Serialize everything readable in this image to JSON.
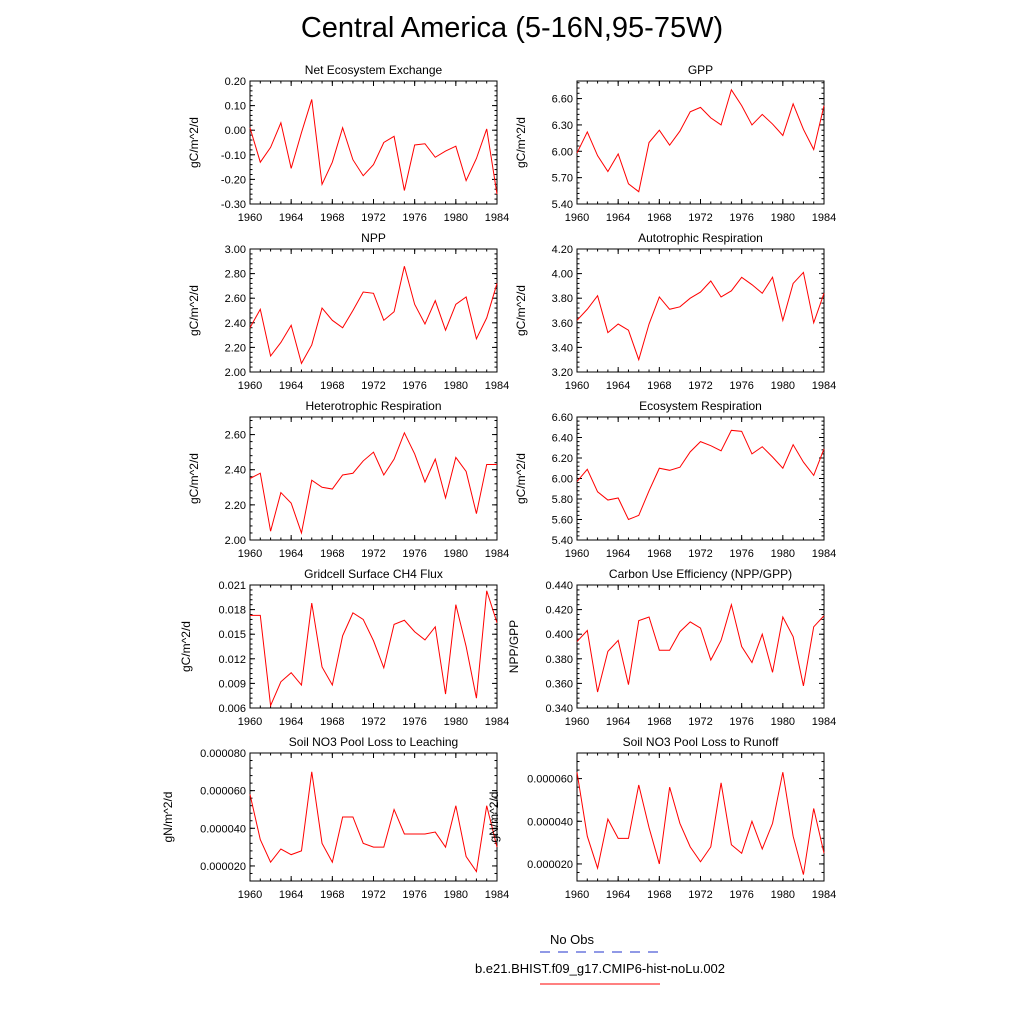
{
  "title": "Central America (5-16N,95-75W)",
  "colors": {
    "series": "#ff0000",
    "obs": "#2233cc",
    "axis": "#000000"
  },
  "legend": {
    "obs_label": "No Obs",
    "model_label": "b.e21.BHIST.f09_g17.CMIP6-hist-noLu.002"
  },
  "chart_data": [
    {
      "type": "line",
      "title": "Net Ecosystem Exchange",
      "ylabel": "gC/m^2/d",
      "ylim": [
        -0.3,
        0.2
      ],
      "yticks": [
        "-0.30",
        "-0.20",
        "-0.10",
        "0.00",
        "0.10",
        "0.20"
      ],
      "xlim": [
        1960,
        1984
      ],
      "xticks": [
        "1960",
        "1964",
        "1968",
        "1972",
        "1976",
        "1980",
        "1984"
      ],
      "x": [
        1960,
        1961,
        1962,
        1963,
        1964,
        1965,
        1966,
        1967,
        1968,
        1969,
        1970,
        1971,
        1972,
        1973,
        1974,
        1975,
        1976,
        1977,
        1978,
        1979,
        1980,
        1981,
        1982,
        1983,
        1984
      ],
      "series": [
        {
          "values": [
            0.01,
            -0.13,
            -0.07,
            0.03,
            -0.155,
            -0.01,
            0.125,
            -0.22,
            -0.13,
            0.01,
            -0.12,
            -0.185,
            -0.14,
            -0.05,
            -0.025,
            -0.245,
            -0.06,
            -0.055,
            -0.11,
            -0.085,
            -0.065,
            -0.205,
            -0.115,
            0.005,
            -0.26
          ]
        }
      ]
    },
    {
      "type": "line",
      "title": "GPP",
      "ylabel": "gC/m^2/d",
      "ylim": [
        5.4,
        6.8
      ],
      "yticks": [
        "5.40",
        "5.70",
        "6.00",
        "6.30",
        "6.60"
      ],
      "xlim": [
        1960,
        1984
      ],
      "xticks": [
        "1960",
        "1964",
        "1968",
        "1972",
        "1976",
        "1980",
        "1984"
      ],
      "x": [
        1960,
        1961,
        1962,
        1963,
        1964,
        1965,
        1966,
        1967,
        1968,
        1969,
        1970,
        1971,
        1972,
        1973,
        1974,
        1975,
        1976,
        1977,
        1978,
        1979,
        1980,
        1981,
        1982,
        1983,
        1984
      ],
      "series": [
        {
          "values": [
            5.98,
            6.22,
            5.95,
            5.77,
            5.97,
            5.63,
            5.54,
            6.1,
            6.24,
            6.07,
            6.23,
            6.45,
            6.5,
            6.38,
            6.3,
            6.7,
            6.52,
            6.3,
            6.42,
            6.31,
            6.18,
            6.54,
            6.25,
            6.02,
            6.52
          ]
        }
      ]
    },
    {
      "type": "line",
      "title": "NPP",
      "ylabel": "gC/m^2/d",
      "ylim": [
        2.0,
        3.0
      ],
      "yticks": [
        "2.00",
        "2.20",
        "2.40",
        "2.60",
        "2.80",
        "3.00"
      ],
      "xlim": [
        1960,
        1984
      ],
      "xticks": [
        "1960",
        "1964",
        "1968",
        "1972",
        "1976",
        "1980",
        "1984"
      ],
      "x": [
        1960,
        1961,
        1962,
        1963,
        1964,
        1965,
        1966,
        1967,
        1968,
        1969,
        1970,
        1971,
        1972,
        1973,
        1974,
        1975,
        1976,
        1977,
        1978,
        1979,
        1980,
        1981,
        1982,
        1983,
        1984
      ],
      "series": [
        {
          "values": [
            2.36,
            2.51,
            2.13,
            2.24,
            2.38,
            2.07,
            2.22,
            2.52,
            2.42,
            2.36,
            2.5,
            2.65,
            2.64,
            2.42,
            2.49,
            2.86,
            2.55,
            2.39,
            2.58,
            2.34,
            2.55,
            2.61,
            2.27,
            2.44,
            2.72
          ]
        }
      ]
    },
    {
      "type": "line",
      "title": "Autotrophic Respiration",
      "ylabel": "gC/m^2/d",
      "ylim": [
        3.2,
        4.2
      ],
      "yticks": [
        "3.20",
        "3.40",
        "3.60",
        "3.80",
        "4.00",
        "4.20"
      ],
      "xlim": [
        1960,
        1984
      ],
      "xticks": [
        "1960",
        "1964",
        "1968",
        "1972",
        "1976",
        "1980",
        "1984"
      ],
      "x": [
        1960,
        1961,
        1962,
        1963,
        1964,
        1965,
        1966,
        1967,
        1968,
        1969,
        1970,
        1971,
        1972,
        1973,
        1974,
        1975,
        1976,
        1977,
        1978,
        1979,
        1980,
        1981,
        1982,
        1983,
        1984
      ],
      "series": [
        {
          "values": [
            3.62,
            3.71,
            3.82,
            3.52,
            3.59,
            3.54,
            3.3,
            3.59,
            3.81,
            3.71,
            3.73,
            3.8,
            3.85,
            3.94,
            3.81,
            3.86,
            3.97,
            3.91,
            3.84,
            3.97,
            3.62,
            3.92,
            4.01,
            3.6,
            3.84
          ]
        }
      ]
    },
    {
      "type": "line",
      "title": "Heterotrophic Respiration",
      "ylabel": "gC/m^2/d",
      "ylim": [
        2.0,
        2.7
      ],
      "yticks": [
        "2.00",
        "2.20",
        "2.40",
        "2.60"
      ],
      "xlim": [
        1960,
        1984
      ],
      "xticks": [
        "1960",
        "1964",
        "1968",
        "1972",
        "1976",
        "1980",
        "1984"
      ],
      "x": [
        1960,
        1961,
        1962,
        1963,
        1964,
        1965,
        1966,
        1967,
        1968,
        1969,
        1970,
        1971,
        1972,
        1973,
        1974,
        1975,
        1976,
        1977,
        1978,
        1979,
        1980,
        1981,
        1982,
        1983,
        1984
      ],
      "series": [
        {
          "values": [
            2.35,
            2.38,
            2.05,
            2.27,
            2.21,
            2.04,
            2.34,
            2.3,
            2.29,
            2.37,
            2.38,
            2.45,
            2.5,
            2.37,
            2.46,
            2.61,
            2.49,
            2.33,
            2.46,
            2.24,
            2.47,
            2.39,
            2.15,
            2.43,
            2.43
          ]
        }
      ]
    },
    {
      "type": "line",
      "title": "Ecosystem Respiration",
      "ylabel": "gC/m^2/d",
      "ylim": [
        5.4,
        6.6
      ],
      "yticks": [
        "5.40",
        "5.60",
        "5.80",
        "6.00",
        "6.20",
        "6.40",
        "6.60"
      ],
      "xlim": [
        1960,
        1984
      ],
      "xticks": [
        "1960",
        "1964",
        "1968",
        "1972",
        "1976",
        "1980",
        "1984"
      ],
      "x": [
        1960,
        1961,
        1962,
        1963,
        1964,
        1965,
        1966,
        1967,
        1968,
        1969,
        1970,
        1971,
        1972,
        1973,
        1974,
        1975,
        1976,
        1977,
        1978,
        1979,
        1980,
        1981,
        1982,
        1983,
        1984
      ],
      "series": [
        {
          "values": [
            5.97,
            6.09,
            5.87,
            5.79,
            5.81,
            5.6,
            5.64,
            5.88,
            6.1,
            6.08,
            6.11,
            6.26,
            6.36,
            6.32,
            6.27,
            6.47,
            6.46,
            6.24,
            6.31,
            6.21,
            6.1,
            6.33,
            6.16,
            6.03,
            6.29
          ]
        }
      ]
    },
    {
      "type": "line",
      "title": "Gridcell Surface CH4 Flux",
      "ylabel": "gC/m^2/d",
      "ylim": [
        0.006,
        0.021
      ],
      "yticks": [
        "0.006",
        "0.009",
        "0.012",
        "0.015",
        "0.018",
        "0.021"
      ],
      "xlim": [
        1960,
        1984
      ],
      "xticks": [
        "1960",
        "1964",
        "1968",
        "1972",
        "1976",
        "1980",
        "1984"
      ],
      "x": [
        1960,
        1961,
        1962,
        1963,
        1964,
        1965,
        1966,
        1967,
        1968,
        1969,
        1970,
        1971,
        1972,
        1973,
        1974,
        1975,
        1976,
        1977,
        1978,
        1979,
        1980,
        1981,
        1982,
        1983,
        1984
      ],
      "series": [
        {
          "values": [
            0.0173,
            0.0173,
            0.0063,
            0.0092,
            0.0103,
            0.0088,
            0.0188,
            0.011,
            0.0088,
            0.0148,
            0.0176,
            0.0168,
            0.0142,
            0.0109,
            0.0162,
            0.0167,
            0.0153,
            0.0143,
            0.0159,
            0.0077,
            0.0186,
            0.0135,
            0.0072,
            0.0203,
            0.0164
          ]
        }
      ]
    },
    {
      "type": "line",
      "title": "Carbon Use Efficiency (NPP/GPP)",
      "ylabel": "NPP/GPP",
      "ylim": [
        0.34,
        0.44
      ],
      "yticks": [
        "0.340",
        "0.360",
        "0.380",
        "0.400",
        "0.420",
        "0.440"
      ],
      "xlim": [
        1960,
        1984
      ],
      "xticks": [
        "1960",
        "1964",
        "1968",
        "1972",
        "1976",
        "1980",
        "1984"
      ],
      "x": [
        1960,
        1961,
        1962,
        1963,
        1964,
        1965,
        1966,
        1967,
        1968,
        1969,
        1970,
        1971,
        1972,
        1973,
        1974,
        1975,
        1976,
        1977,
        1978,
        1979,
        1980,
        1981,
        1982,
        1983,
        1984
      ],
      "series": [
        {
          "values": [
            0.394,
            0.403,
            0.353,
            0.386,
            0.395,
            0.359,
            0.411,
            0.414,
            0.387,
            0.387,
            0.402,
            0.41,
            0.405,
            0.379,
            0.395,
            0.424,
            0.39,
            0.377,
            0.4,
            0.369,
            0.414,
            0.398,
            0.358,
            0.406,
            0.415
          ]
        }
      ]
    },
    {
      "type": "line",
      "title": "Soil NO3 Pool Loss to Leaching",
      "ylabel": "gN/m^2/d",
      "ylim": [
        1.2e-05,
        8e-05
      ],
      "yticks": [
        "0.000020",
        "0.000040",
        "0.000060",
        "0.000080"
      ],
      "xlim": [
        1960,
        1984
      ],
      "xticks": [
        "1960",
        "1964",
        "1968",
        "1972",
        "1976",
        "1980",
        "1984"
      ],
      "x": [
        1960,
        1961,
        1962,
        1963,
        1964,
        1965,
        1966,
        1967,
        1968,
        1969,
        1970,
        1971,
        1972,
        1973,
        1974,
        1975,
        1976,
        1977,
        1978,
        1979,
        1980,
        1981,
        1982,
        1983,
        1984
      ],
      "series": [
        {
          "values": [
            5.8e-05,
            3.4e-05,
            2.2e-05,
            2.9e-05,
            2.6e-05,
            2.8e-05,
            7e-05,
            3.2e-05,
            2.2e-05,
            4.6e-05,
            4.6e-05,
            3.2e-05,
            3e-05,
            3e-05,
            5e-05,
            3.7e-05,
            3.7e-05,
            3.7e-05,
            3.8e-05,
            3e-05,
            5.2e-05,
            2.5e-05,
            1.7e-05,
            5.2e-05,
            3e-05
          ]
        }
      ]
    },
    {
      "type": "line",
      "title": "Soil NO3 Pool Loss to Runoff",
      "ylabel": "gN/m^2/d",
      "ylim": [
        1.2e-05,
        7.2e-05
      ],
      "yticks": [
        "0.000020",
        "0.000040",
        "0.000060"
      ],
      "xlim": [
        1960,
        1984
      ],
      "xticks": [
        "1960",
        "1964",
        "1968",
        "1972",
        "1976",
        "1980",
        "1984"
      ],
      "x": [
        1960,
        1961,
        1962,
        1963,
        1964,
        1965,
        1966,
        1967,
        1968,
        1969,
        1970,
        1971,
        1972,
        1973,
        1974,
        1975,
        1976,
        1977,
        1978,
        1979,
        1980,
        1981,
        1982,
        1983,
        1984
      ],
      "series": [
        {
          "values": [
            6.3e-05,
            3.3e-05,
            1.8e-05,
            4.1e-05,
            3.2e-05,
            3.2e-05,
            5.7e-05,
            3.7e-05,
            2e-05,
            5.6e-05,
            3.9e-05,
            2.8e-05,
            2.1e-05,
            2.8e-05,
            5.8e-05,
            2.9e-05,
            2.5e-05,
            4e-05,
            2.7e-05,
            3.9e-05,
            6.3e-05,
            3.3e-05,
            1.5e-05,
            4.6e-05,
            2.5e-05
          ]
        }
      ]
    }
  ]
}
